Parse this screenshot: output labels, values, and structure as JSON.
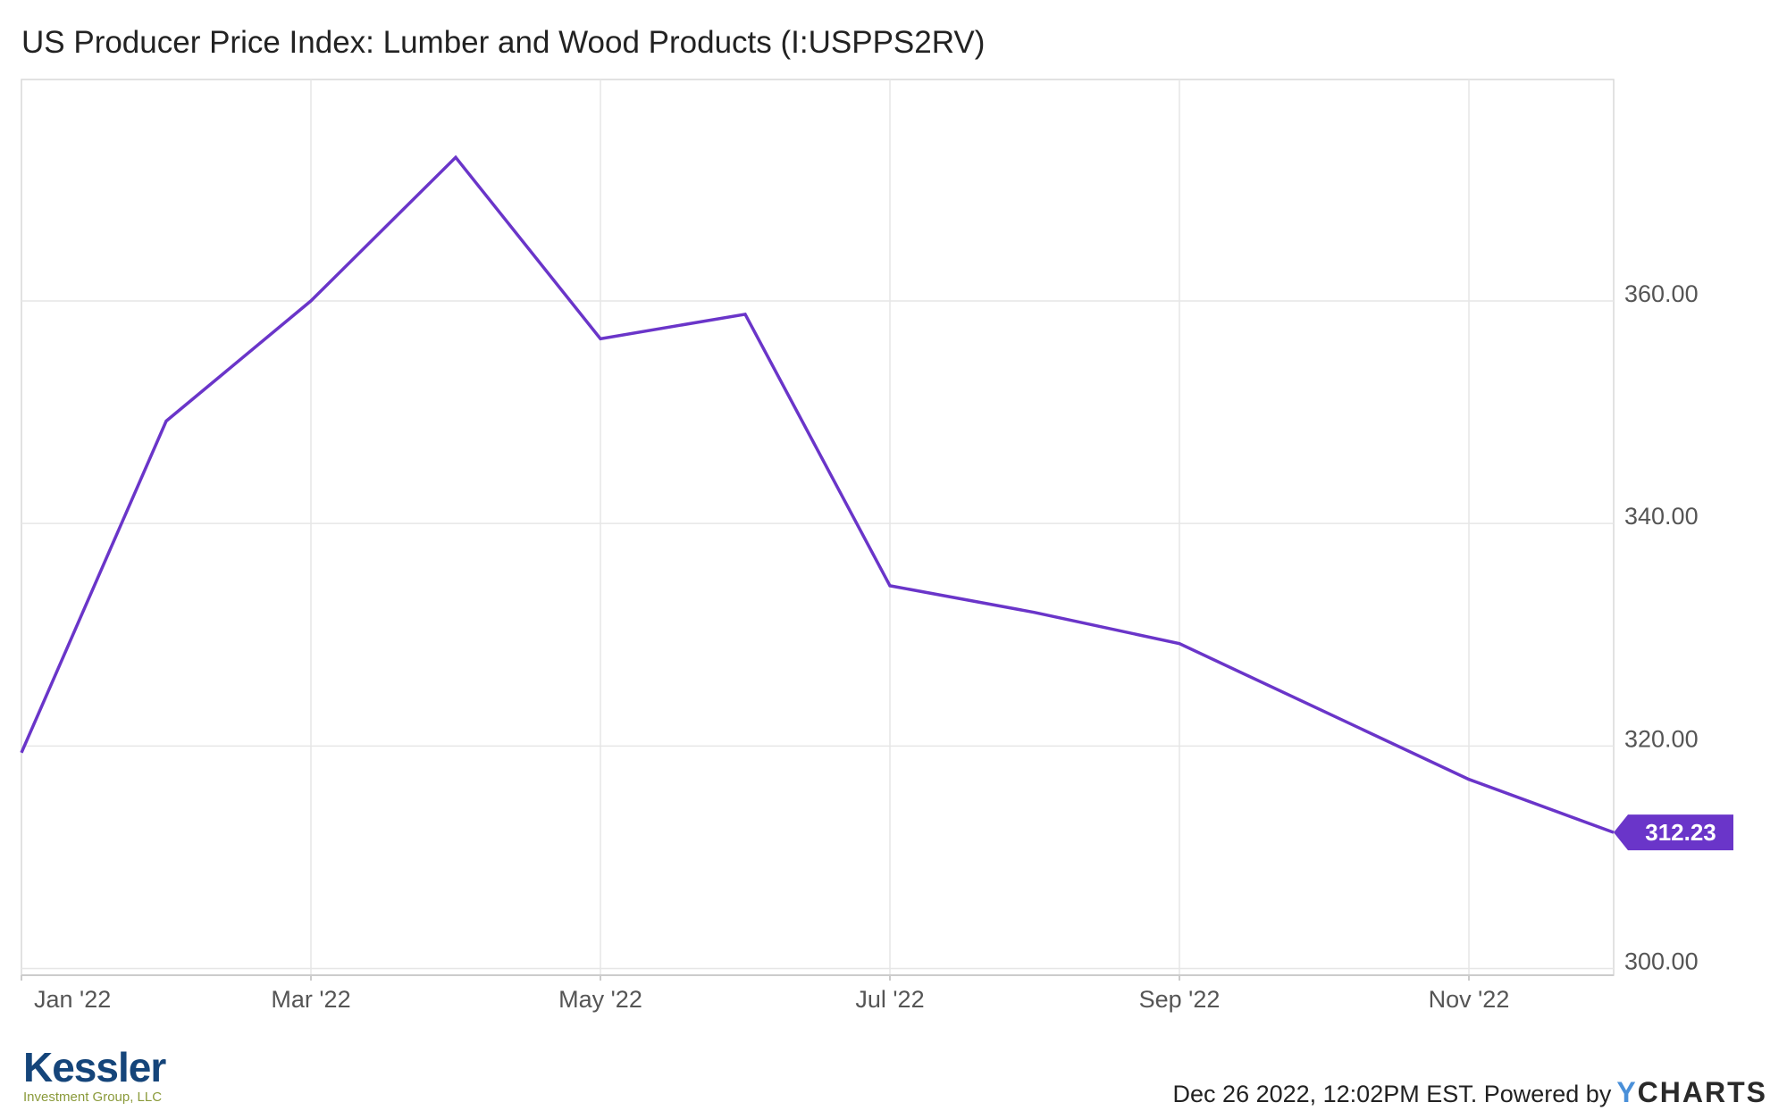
{
  "title": "US Producer Price Index: Lumber and Wood Products (I:USPPS2RV)",
  "chart_data": {
    "type": "line",
    "title": "US Producer Price Index: Lumber and Wood Products (I:USPPS2RV)",
    "xlabel": "",
    "ylabel": "",
    "x": [
      "2022-01",
      "2022-02",
      "2022-03",
      "2022-04",
      "2022-05",
      "2022-06",
      "2022-07",
      "2022-08",
      "2022-09",
      "2022-10",
      "2022-11",
      "2022-12"
    ],
    "series": [
      {
        "values": [
          319.4,
          349.2,
          360.0,
          372.9,
          356.6,
          358.8,
          334.4,
          332.0,
          329.2,
          323.1,
          317.0,
          312.23
        ],
        "color": "#6a35c9"
      }
    ],
    "x_ticks": [
      "Jan '22",
      "Mar '22",
      "May '22",
      "Jul '22",
      "Sep '22",
      "Nov '22"
    ],
    "y_ticks": [
      "300.00",
      "320.00",
      "340.00",
      "360.00"
    ],
    "ylim": [
      299.4,
      379.9
    ],
    "y_axis_position": "right",
    "grid": true,
    "last_value_label": "312.23"
  },
  "logo": {
    "name": "Kessler",
    "subtitle": "Investment Group, LLC"
  },
  "footer": {
    "timestamp_text": "Dec 26 2022, 12:02PM EST. Powered by",
    "brand_y": "Y",
    "brand_rest": "CHARTS"
  },
  "colors": {
    "line": "#6a35c9",
    "grid": "#e6e6e6",
    "axis": "#cccccc",
    "brand_blue": "#15457a",
    "brand_green": "#8a9a3a"
  }
}
